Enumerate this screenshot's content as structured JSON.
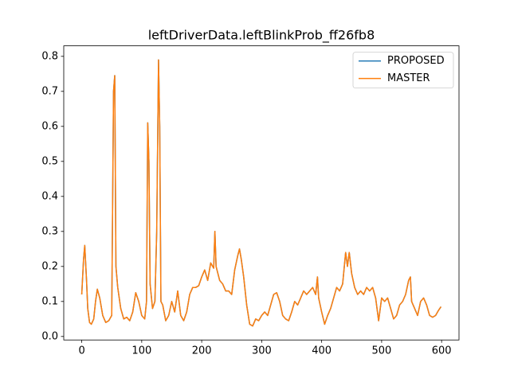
{
  "chart_data": {
    "type": "line",
    "title": "leftDriverData.leftBlinkProb_ff26fb8",
    "x": [
      0,
      3,
      5,
      8,
      10,
      13,
      16,
      20,
      23,
      26,
      30,
      35,
      40,
      45,
      50,
      53,
      55,
      57,
      60,
      65,
      70,
      75,
      80,
      85,
      90,
      95,
      100,
      105,
      108,
      110,
      112,
      114,
      118,
      122,
      125,
      128,
      130,
      132,
      135,
      140,
      145,
      150,
      155,
      160,
      165,
      170,
      175,
      180,
      185,
      190,
      195,
      200,
      205,
      210,
      215,
      220,
      222,
      224,
      230,
      235,
      240,
      245,
      250,
      255,
      260,
      263,
      266,
      270,
      275,
      280,
      285,
      290,
      295,
      300,
      305,
      310,
      315,
      320,
      325,
      330,
      335,
      340,
      345,
      350,
      355,
      360,
      365,
      370,
      375,
      380,
      385,
      390,
      393,
      395,
      400,
      405,
      410,
      415,
      420,
      425,
      430,
      435,
      440,
      443,
      446,
      450,
      455,
      460,
      465,
      470,
      475,
      480,
      485,
      490,
      495,
      500,
      505,
      510,
      515,
      520,
      525,
      530,
      535,
      540,
      545,
      548,
      550,
      555,
      560,
      565,
      570,
      575,
      580,
      585,
      590,
      595,
      599
    ],
    "series": [
      {
        "name": "PROPOSED",
        "color": "#1f77b4",
        "values": [
          0.12,
          0.22,
          0.26,
          0.16,
          0.08,
          0.04,
          0.035,
          0.05,
          0.1,
          0.135,
          0.11,
          0.06,
          0.04,
          0.045,
          0.06,
          0.7,
          0.745,
          0.2,
          0.14,
          0.08,
          0.05,
          0.055,
          0.045,
          0.07,
          0.125,
          0.1,
          0.06,
          0.05,
          0.1,
          0.61,
          0.5,
          0.15,
          0.08,
          0.1,
          0.3,
          0.79,
          0.6,
          0.1,
          0.09,
          0.045,
          0.06,
          0.1,
          0.07,
          0.13,
          0.06,
          0.045,
          0.07,
          0.12,
          0.14,
          0.14,
          0.145,
          0.17,
          0.19,
          0.16,
          0.21,
          0.195,
          0.3,
          0.2,
          0.16,
          0.15,
          0.13,
          0.13,
          0.12,
          0.19,
          0.23,
          0.25,
          0.22,
          0.17,
          0.09,
          0.035,
          0.03,
          0.05,
          0.045,
          0.06,
          0.07,
          0.06,
          0.09,
          0.12,
          0.125,
          0.1,
          0.06,
          0.05,
          0.045,
          0.07,
          0.1,
          0.09,
          0.11,
          0.13,
          0.12,
          0.13,
          0.14,
          0.12,
          0.17,
          0.11,
          0.07,
          0.035,
          0.06,
          0.08,
          0.11,
          0.14,
          0.13,
          0.15,
          0.24,
          0.2,
          0.24,
          0.18,
          0.14,
          0.12,
          0.13,
          0.12,
          0.14,
          0.13,
          0.14,
          0.11,
          0.045,
          0.11,
          0.1,
          0.11,
          0.08,
          0.05,
          0.06,
          0.09,
          0.1,
          0.12,
          0.16,
          0.17,
          0.1,
          0.08,
          0.06,
          0.1,
          0.11,
          0.09,
          0.06,
          0.055,
          0.06,
          0.075,
          0.085
        ]
      },
      {
        "name": "MASTER",
        "color": "#ff7f0e",
        "values": [
          0.12,
          0.22,
          0.26,
          0.16,
          0.08,
          0.04,
          0.035,
          0.05,
          0.1,
          0.135,
          0.11,
          0.06,
          0.04,
          0.045,
          0.06,
          0.7,
          0.745,
          0.2,
          0.14,
          0.08,
          0.05,
          0.055,
          0.045,
          0.07,
          0.125,
          0.1,
          0.06,
          0.05,
          0.1,
          0.61,
          0.5,
          0.15,
          0.08,
          0.1,
          0.3,
          0.79,
          0.6,
          0.1,
          0.09,
          0.045,
          0.06,
          0.1,
          0.07,
          0.13,
          0.06,
          0.045,
          0.07,
          0.12,
          0.14,
          0.14,
          0.145,
          0.17,
          0.19,
          0.16,
          0.21,
          0.195,
          0.3,
          0.2,
          0.16,
          0.15,
          0.13,
          0.13,
          0.12,
          0.19,
          0.23,
          0.25,
          0.22,
          0.17,
          0.09,
          0.035,
          0.03,
          0.05,
          0.045,
          0.06,
          0.07,
          0.06,
          0.09,
          0.12,
          0.125,
          0.1,
          0.06,
          0.05,
          0.045,
          0.07,
          0.1,
          0.09,
          0.11,
          0.13,
          0.12,
          0.13,
          0.14,
          0.12,
          0.17,
          0.11,
          0.07,
          0.035,
          0.06,
          0.08,
          0.11,
          0.14,
          0.13,
          0.15,
          0.24,
          0.2,
          0.24,
          0.18,
          0.14,
          0.12,
          0.13,
          0.12,
          0.14,
          0.13,
          0.14,
          0.11,
          0.045,
          0.11,
          0.1,
          0.11,
          0.08,
          0.05,
          0.06,
          0.09,
          0.1,
          0.12,
          0.16,
          0.17,
          0.1,
          0.08,
          0.06,
          0.1,
          0.11,
          0.09,
          0.06,
          0.055,
          0.06,
          0.075,
          0.085
        ]
      }
    ],
    "xlim": [
      -30,
      629
    ],
    "ylim": [
      -0.01,
      0.83
    ],
    "xticks": [
      0,
      100,
      200,
      300,
      400,
      500,
      600
    ],
    "yticks": [
      {
        "value": 0,
        "label": "0.0"
      },
      0.1,
      0.2,
      0.3,
      0.4,
      0.5,
      0.6,
      0.7,
      0.8
    ],
    "legend": "upper right"
  }
}
